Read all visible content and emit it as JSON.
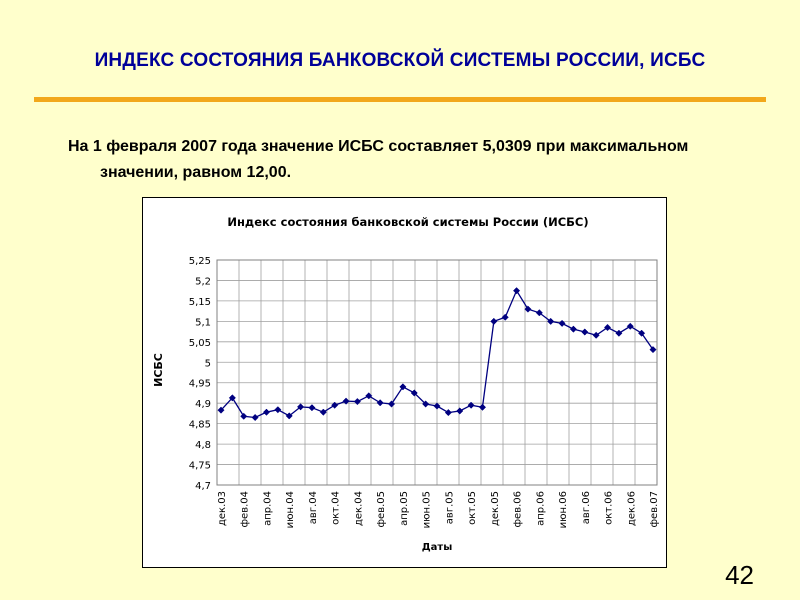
{
  "slide": {
    "title": "ИНДЕКС СОСТОЯНИЯ БАНКОВСКОЙ СИСТЕМЫ РОССИИ, ИСБС",
    "body_text": "На 1 февраля 2007 года значение ИСБС составляет 5,0309 при максимальном значении, равном 12,00.",
    "page_number": "42",
    "colors": {
      "title": "#000099",
      "rule": "#f2a81c",
      "background": "#ffffcc",
      "series": "#000080"
    }
  },
  "chart_data": {
    "type": "line",
    "title": "Индекс состояния банковской системы России (ИСБС)",
    "xlabel": "Даты",
    "ylabel": "ИСБС",
    "ylim": [
      4.7,
      5.25
    ],
    "grid": true,
    "legend": "none",
    "y_ticks": [
      "4,7",
      "4,75",
      "4,8",
      "4,85",
      "4,9",
      "4,95",
      "5",
      "5,05",
      "5,1",
      "5,15",
      "5,2",
      "5,25"
    ],
    "x_tick_labels": [
      "дек.03",
      "фев.04",
      "апр.04",
      "июн.04",
      "авг.04",
      "окт.04",
      "дек.04",
      "фев.05",
      "апр.05",
      "июн.05",
      "авг.05",
      "окт.05",
      "дек.05",
      "фев.06",
      "апр.06",
      "июн.06",
      "авг.06",
      "окт.06",
      "дек.06",
      "фев.07"
    ],
    "x": [
      "дек.03",
      "янв.04",
      "фев.04",
      "мар.04",
      "апр.04",
      "май.04",
      "июн.04",
      "июл.04",
      "авг.04",
      "сен.04",
      "окт.04",
      "ноя.04",
      "дек.04",
      "янв.05",
      "фев.05",
      "мар.05",
      "апр.05",
      "май.05",
      "июн.05",
      "июл.05",
      "авг.05",
      "сен.05",
      "окт.05",
      "ноя.05",
      "дек.05",
      "янв.06",
      "фев.06",
      "мар.06",
      "апр.06",
      "май.06",
      "июн.06",
      "июл.06",
      "авг.06",
      "сен.06",
      "окт.06",
      "ноя.06",
      "дек.06",
      "янв.07",
      "фев.07"
    ],
    "values": [
      4.883,
      4.913,
      4.868,
      4.865,
      4.878,
      4.884,
      4.869,
      4.891,
      4.889,
      4.878,
      4.895,
      4.905,
      4.904,
      4.918,
      4.901,
      4.898,
      4.94,
      4.925,
      4.898,
      4.893,
      4.877,
      4.881,
      4.895,
      4.89,
      5.1,
      5.11,
      5.175,
      5.13,
      5.121,
      5.1,
      5.095,
      5.081,
      5.074,
      5.066,
      5.085,
      5.071,
      5.088,
      5.071,
      5.031
    ]
  }
}
